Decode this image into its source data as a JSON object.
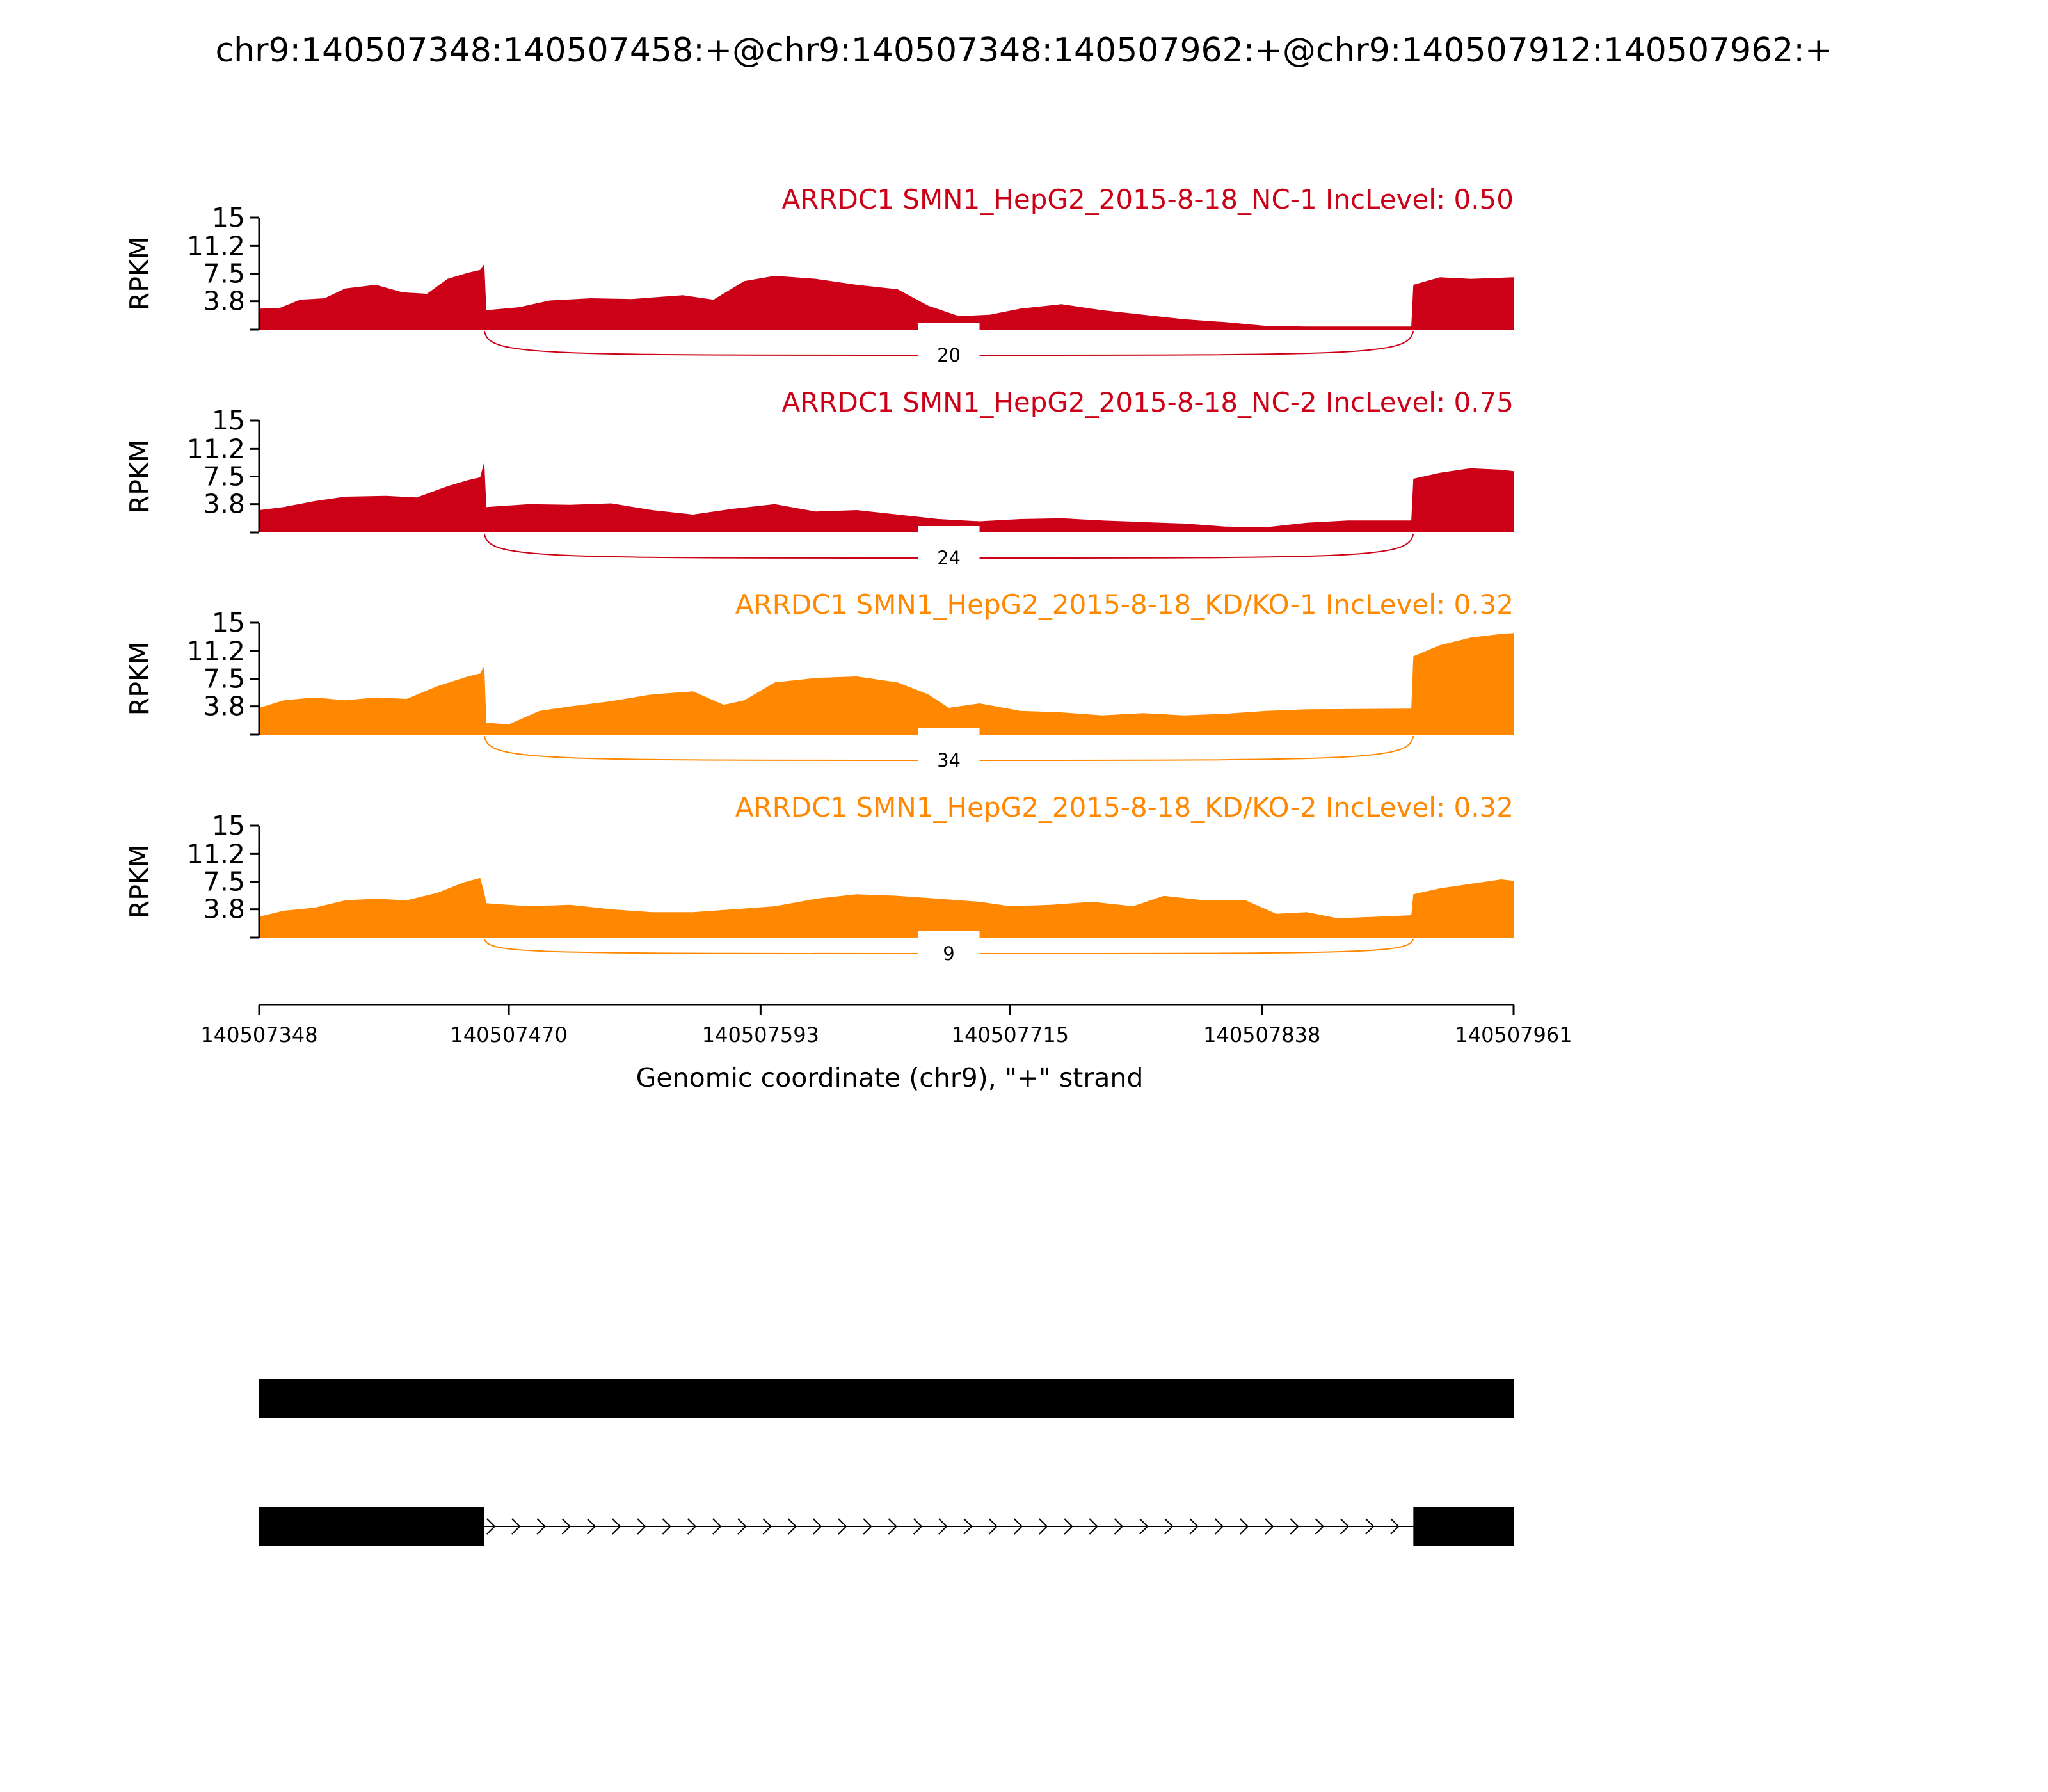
{
  "chart_data": {
    "type": "area",
    "title": "chr9:140507348:140507458:+@chr9:140507348:140507962:+@chr9:140507912:140507962:+",
    "xlabel": "Genomic coordinate (chr9), \"+\" strand",
    "xlim": [
      140507348,
      140507961
    ],
    "xticks": [
      "140507348",
      "140507470",
      "140507593",
      "140507715",
      "140507838",
      "140507961"
    ],
    "ylabel": "RPKM",
    "ylim": [
      0,
      15
    ],
    "yticks": [
      "15",
      "11.2",
      "7.5",
      "3.8"
    ],
    "grid": false,
    "tracks": [
      {
        "label": "ARRDC1 SMN1_HepG2_2015-8-18_NC-1 IncLevel: 0.50",
        "color": "#cc0016",
        "junction": {
          "count": "20",
          "start": 140507458,
          "end": 140507912
        },
        "coverage": [
          [
            140507348,
            2.8
          ],
          [
            140507358,
            2.9
          ],
          [
            140507368,
            4.0
          ],
          [
            140507380,
            4.2
          ],
          [
            140507390,
            5.5
          ],
          [
            140507405,
            6.0
          ],
          [
            140507418,
            5.0
          ],
          [
            140507430,
            4.8
          ],
          [
            140507440,
            6.8
          ],
          [
            140507450,
            7.6
          ],
          [
            140507456,
            8.0
          ],
          [
            140507458,
            8.8
          ],
          [
            140507459,
            2.6
          ],
          [
            140507475,
            3.0
          ],
          [
            140507490,
            3.9
          ],
          [
            140507510,
            4.2
          ],
          [
            140507530,
            4.1
          ],
          [
            140507555,
            4.6
          ],
          [
            140507570,
            4.0
          ],
          [
            140507585,
            6.5
          ],
          [
            140507600,
            7.2
          ],
          [
            140507620,
            6.8
          ],
          [
            140507640,
            6.0
          ],
          [
            140507660,
            5.4
          ],
          [
            140507675,
            3.2
          ],
          [
            140507690,
            1.8
          ],
          [
            140507705,
            2.0
          ],
          [
            140507720,
            2.8
          ],
          [
            140507740,
            3.4
          ],
          [
            140507760,
            2.6
          ],
          [
            140507780,
            2.0
          ],
          [
            140507800,
            1.4
          ],
          [
            140507820,
            1.0
          ],
          [
            140507840,
            0.5
          ],
          [
            140507860,
            0.4
          ],
          [
            140507911,
            0.4
          ],
          [
            140507912,
            6.0
          ],
          [
            140507925,
            7.0
          ],
          [
            140507940,
            6.8
          ],
          [
            140507961,
            7.0
          ]
        ]
      },
      {
        "label": "ARRDC1 SMN1_HepG2_2015-8-18_NC-2 IncLevel: 0.75",
        "color": "#cc0016",
        "junction": {
          "count": "24",
          "start": 140507458,
          "end": 140507912
        },
        "coverage": [
          [
            140507348,
            3.0
          ],
          [
            140507360,
            3.4
          ],
          [
            140507375,
            4.2
          ],
          [
            140507390,
            4.8
          ],
          [
            140507410,
            4.9
          ],
          [
            140507425,
            4.7
          ],
          [
            140507440,
            6.2
          ],
          [
            140507450,
            7.0
          ],
          [
            140507456,
            7.4
          ],
          [
            140507458,
            9.5
          ],
          [
            140507459,
            3.4
          ],
          [
            140507480,
            3.8
          ],
          [
            140507500,
            3.7
          ],
          [
            140507520,
            3.9
          ],
          [
            140507540,
            3.0
          ],
          [
            140507560,
            2.4
          ],
          [
            140507580,
            3.2
          ],
          [
            140507600,
            3.8
          ],
          [
            140507620,
            2.8
          ],
          [
            140507640,
            3.0
          ],
          [
            140507660,
            2.4
          ],
          [
            140507680,
            1.8
          ],
          [
            140507700,
            1.5
          ],
          [
            140507720,
            1.8
          ],
          [
            140507740,
            1.9
          ],
          [
            140507760,
            1.6
          ],
          [
            140507780,
            1.4
          ],
          [
            140507800,
            1.2
          ],
          [
            140507820,
            0.8
          ],
          [
            140507840,
            0.7
          ],
          [
            140507860,
            1.3
          ],
          [
            140507880,
            1.6
          ],
          [
            140507911,
            1.6
          ],
          [
            140507912,
            7.2
          ],
          [
            140507925,
            8.0
          ],
          [
            140507940,
            8.6
          ],
          [
            140507955,
            8.4
          ],
          [
            140507961,
            8.2
          ]
        ]
      },
      {
        "label": "ARRDC1 SMN1_HepG2_2015-8-18_KD/KO-1 IncLevel: 0.32",
        "color": "#ff8800",
        "junction": {
          "count": "34",
          "start": 140507458,
          "end": 140507912
        },
        "coverage": [
          [
            140507348,
            3.6
          ],
          [
            140507360,
            4.6
          ],
          [
            140507375,
            5.0
          ],
          [
            140507390,
            4.6
          ],
          [
            140507405,
            5.0
          ],
          [
            140507420,
            4.8
          ],
          [
            140507435,
            6.5
          ],
          [
            140507450,
            7.8
          ],
          [
            140507456,
            8.2
          ],
          [
            140507458,
            9.2
          ],
          [
            140507459,
            1.6
          ],
          [
            140507470,
            1.4
          ],
          [
            140507485,
            3.2
          ],
          [
            140507500,
            3.8
          ],
          [
            140507520,
            4.5
          ],
          [
            140507540,
            5.4
          ],
          [
            140507560,
            5.8
          ],
          [
            140507575,
            4.0
          ],
          [
            140507585,
            4.6
          ],
          [
            140507600,
            7.0
          ],
          [
            140507620,
            7.6
          ],
          [
            140507640,
            7.8
          ],
          [
            140507660,
            7.0
          ],
          [
            140507675,
            5.4
          ],
          [
            140507685,
            3.6
          ],
          [
            140507700,
            4.2
          ],
          [
            140507720,
            3.2
          ],
          [
            140507740,
            3.0
          ],
          [
            140507760,
            2.6
          ],
          [
            140507780,
            2.9
          ],
          [
            140507800,
            2.6
          ],
          [
            140507820,
            2.8
          ],
          [
            140507840,
            3.2
          ],
          [
            140507860,
            3.4
          ],
          [
            140507911,
            3.5
          ],
          [
            140507912,
            10.5
          ],
          [
            140507925,
            12.0
          ],
          [
            140507940,
            13.0
          ],
          [
            140507955,
            13.5
          ],
          [
            140507961,
            13.6
          ]
        ]
      },
      {
        "label": "ARRDC1 SMN1_HepG2_2015-8-18_KD/KO-2 IncLevel: 0.32",
        "color": "#ff8800",
        "junction": {
          "count": "9",
          "start": 140507458,
          "end": 140507912
        },
        "coverage": [
          [
            140507348,
            2.8
          ],
          [
            140507360,
            3.6
          ],
          [
            140507375,
            4.0
          ],
          [
            140507390,
            5.0
          ],
          [
            140507405,
            5.2
          ],
          [
            140507420,
            5.0
          ],
          [
            140507435,
            6.0
          ],
          [
            140507448,
            7.4
          ],
          [
            140507456,
            8.0
          ],
          [
            140507458,
            6.0
          ],
          [
            140507459,
            4.6
          ],
          [
            140507480,
            4.2
          ],
          [
            140507500,
            4.4
          ],
          [
            140507520,
            3.8
          ],
          [
            140507540,
            3.4
          ],
          [
            140507560,
            3.4
          ],
          [
            140507580,
            3.8
          ],
          [
            140507600,
            4.2
          ],
          [
            140507620,
            5.2
          ],
          [
            140507640,
            5.8
          ],
          [
            140507660,
            5.6
          ],
          [
            140507680,
            5.2
          ],
          [
            140507700,
            4.8
          ],
          [
            140507715,
            4.2
          ],
          [
            140507735,
            4.4
          ],
          [
            140507755,
            4.8
          ],
          [
            140507775,
            4.2
          ],
          [
            140507790,
            5.6
          ],
          [
            140507810,
            5.0
          ],
          [
            140507830,
            5.0
          ],
          [
            140507845,
            3.2
          ],
          [
            140507860,
            3.4
          ],
          [
            140507875,
            2.6
          ],
          [
            140507895,
            2.8
          ],
          [
            140507911,
            3.0
          ],
          [
            140507912,
            5.8
          ],
          [
            140507925,
            6.6
          ],
          [
            140507940,
            7.2
          ],
          [
            140507955,
            7.8
          ],
          [
            140507961,
            7.6
          ]
        ]
      }
    ],
    "isoforms": [
      {
        "exons": [
          [
            140507348,
            140507961
          ]
        ]
      },
      {
        "exons": [
          [
            140507348,
            140507458
          ],
          [
            140507912,
            140507961
          ]
        ],
        "strand": "+"
      }
    ]
  }
}
